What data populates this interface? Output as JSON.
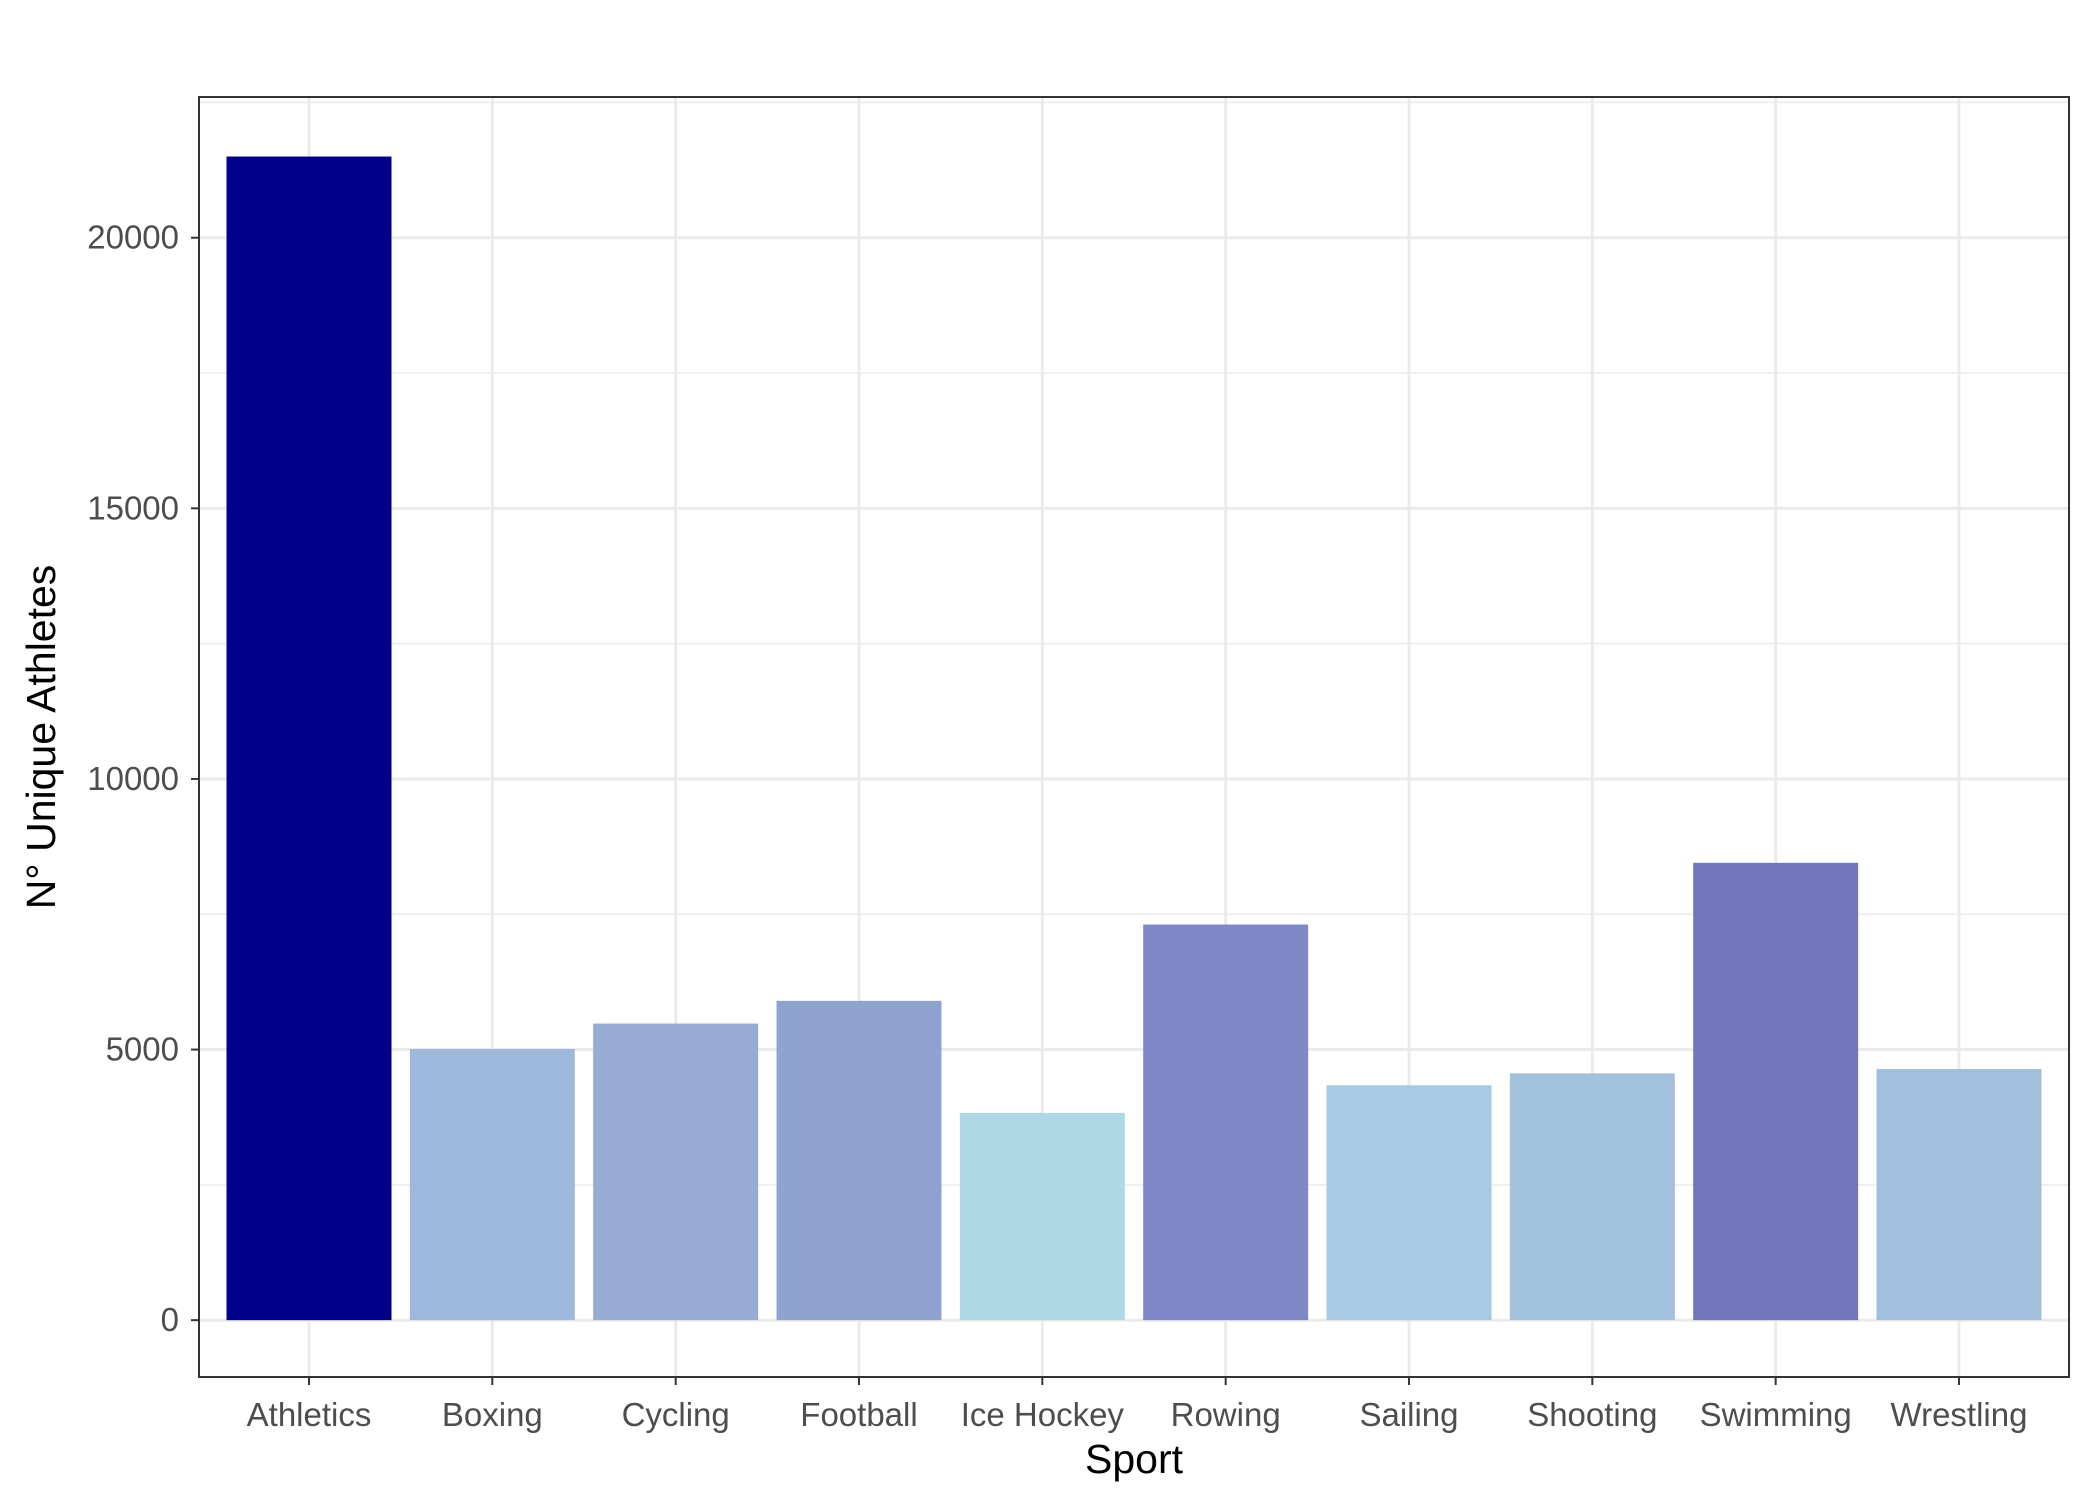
{
  "chart_data": {
    "type": "bar",
    "title": "",
    "xlabel": "Sport",
    "ylabel": "N° Unique Athletes",
    "categories": [
      "Athletics",
      "Boxing",
      "Cycling",
      "Football",
      "Ice Hockey",
      "Rowing",
      "Sailing",
      "Shooting",
      "Swimming",
      "Wrestling"
    ],
    "values": [
      21500,
      5010,
      5480,
      5900,
      3830,
      7310,
      4340,
      4560,
      8450,
      4640
    ],
    "colors": [
      "#00008b",
      "#9db8db",
      "#97acd5",
      "#8fa3d0",
      "#add8e6",
      "#8089c7",
      "#a7c9e1",
      "#a1c1dd",
      "#7476bd",
      "#a1bfdc"
    ],
    "ylim": [
      -1050,
      22600
    ],
    "yticks": [
      0,
      5000,
      10000,
      15000,
      20000
    ],
    "ytick_labels": [
      "0",
      "5000",
      "10000",
      "15000",
      "20000"
    ],
    "grid": true,
    "legend": "none"
  }
}
